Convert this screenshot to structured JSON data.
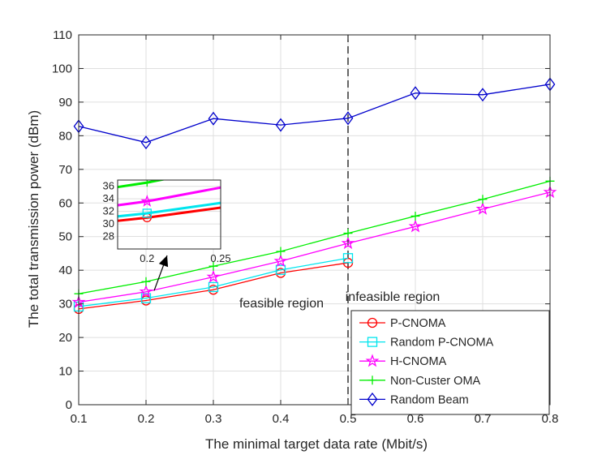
{
  "chart_data": {
    "type": "line",
    "xlabel": "The minimal target data rate (Mbit/s)",
    "ylabel": "The total transmission power (dBm)",
    "xlim": [
      0.1,
      0.8
    ],
    "ylim": [
      0,
      110
    ],
    "xticks": [
      "0.1",
      "0.2",
      "0.3",
      "0.4",
      "0.5",
      "0.6",
      "0.7",
      "0.8"
    ],
    "yticks": [
      "0",
      "10",
      "20",
      "30",
      "40",
      "50",
      "60",
      "70",
      "80",
      "90",
      "100",
      "110"
    ],
    "grid": true,
    "legend_position": "bottom-right",
    "series": [
      {
        "name": "P-CNOMA",
        "color": "#ff0000",
        "marker": "circle",
        "x": [
          0.1,
          0.2,
          0.3,
          0.4,
          0.5
        ],
        "y": [
          28.5,
          31.0,
          34.2,
          39.2,
          42.2
        ]
      },
      {
        "name": "Random P-CNOMA",
        "color": "#00e5ee",
        "marker": "square",
        "x": [
          0.1,
          0.2,
          0.3,
          0.4,
          0.5
        ],
        "y": [
          29.2,
          31.7,
          35.0,
          40.1,
          43.6
        ]
      },
      {
        "name": "H-CNOMA",
        "color": "#ff00ff",
        "marker": "star",
        "x": [
          0.1,
          0.2,
          0.3,
          0.4,
          0.5,
          0.6,
          0.7,
          0.8
        ],
        "y": [
          30.5,
          33.6,
          38.0,
          42.7,
          48.0,
          53.0,
          58.2,
          63.2
        ]
      },
      {
        "name": "Non-Custer OMA",
        "color": "#00ee00",
        "marker": "plus",
        "x": [
          0.1,
          0.2,
          0.3,
          0.4,
          0.5,
          0.6,
          0.7,
          0.8
        ],
        "y": [
          33.0,
          36.6,
          41.2,
          45.6,
          51.0,
          56.1,
          61.1,
          66.5
        ]
      },
      {
        "name": "Random Beam",
        "color": "#0000cc",
        "marker": "diamond",
        "x": [
          0.1,
          0.2,
          0.3,
          0.4,
          0.5,
          0.6,
          0.7,
          0.8
        ],
        "y": [
          82.8,
          78.0,
          85.1,
          83.2,
          85.2,
          92.7,
          92.2,
          95.3
        ]
      }
    ],
    "vline_x": 0.5,
    "annotations": [
      "feasible region",
      "infeasible region"
    ],
    "inset": {
      "xlim": [
        0.18,
        0.25
      ],
      "ylim": [
        26,
        37
      ],
      "xticks": [
        "0.2",
        "0.25"
      ],
      "yticks": [
        "28",
        "30",
        "32",
        "34",
        "36"
      ]
    }
  }
}
